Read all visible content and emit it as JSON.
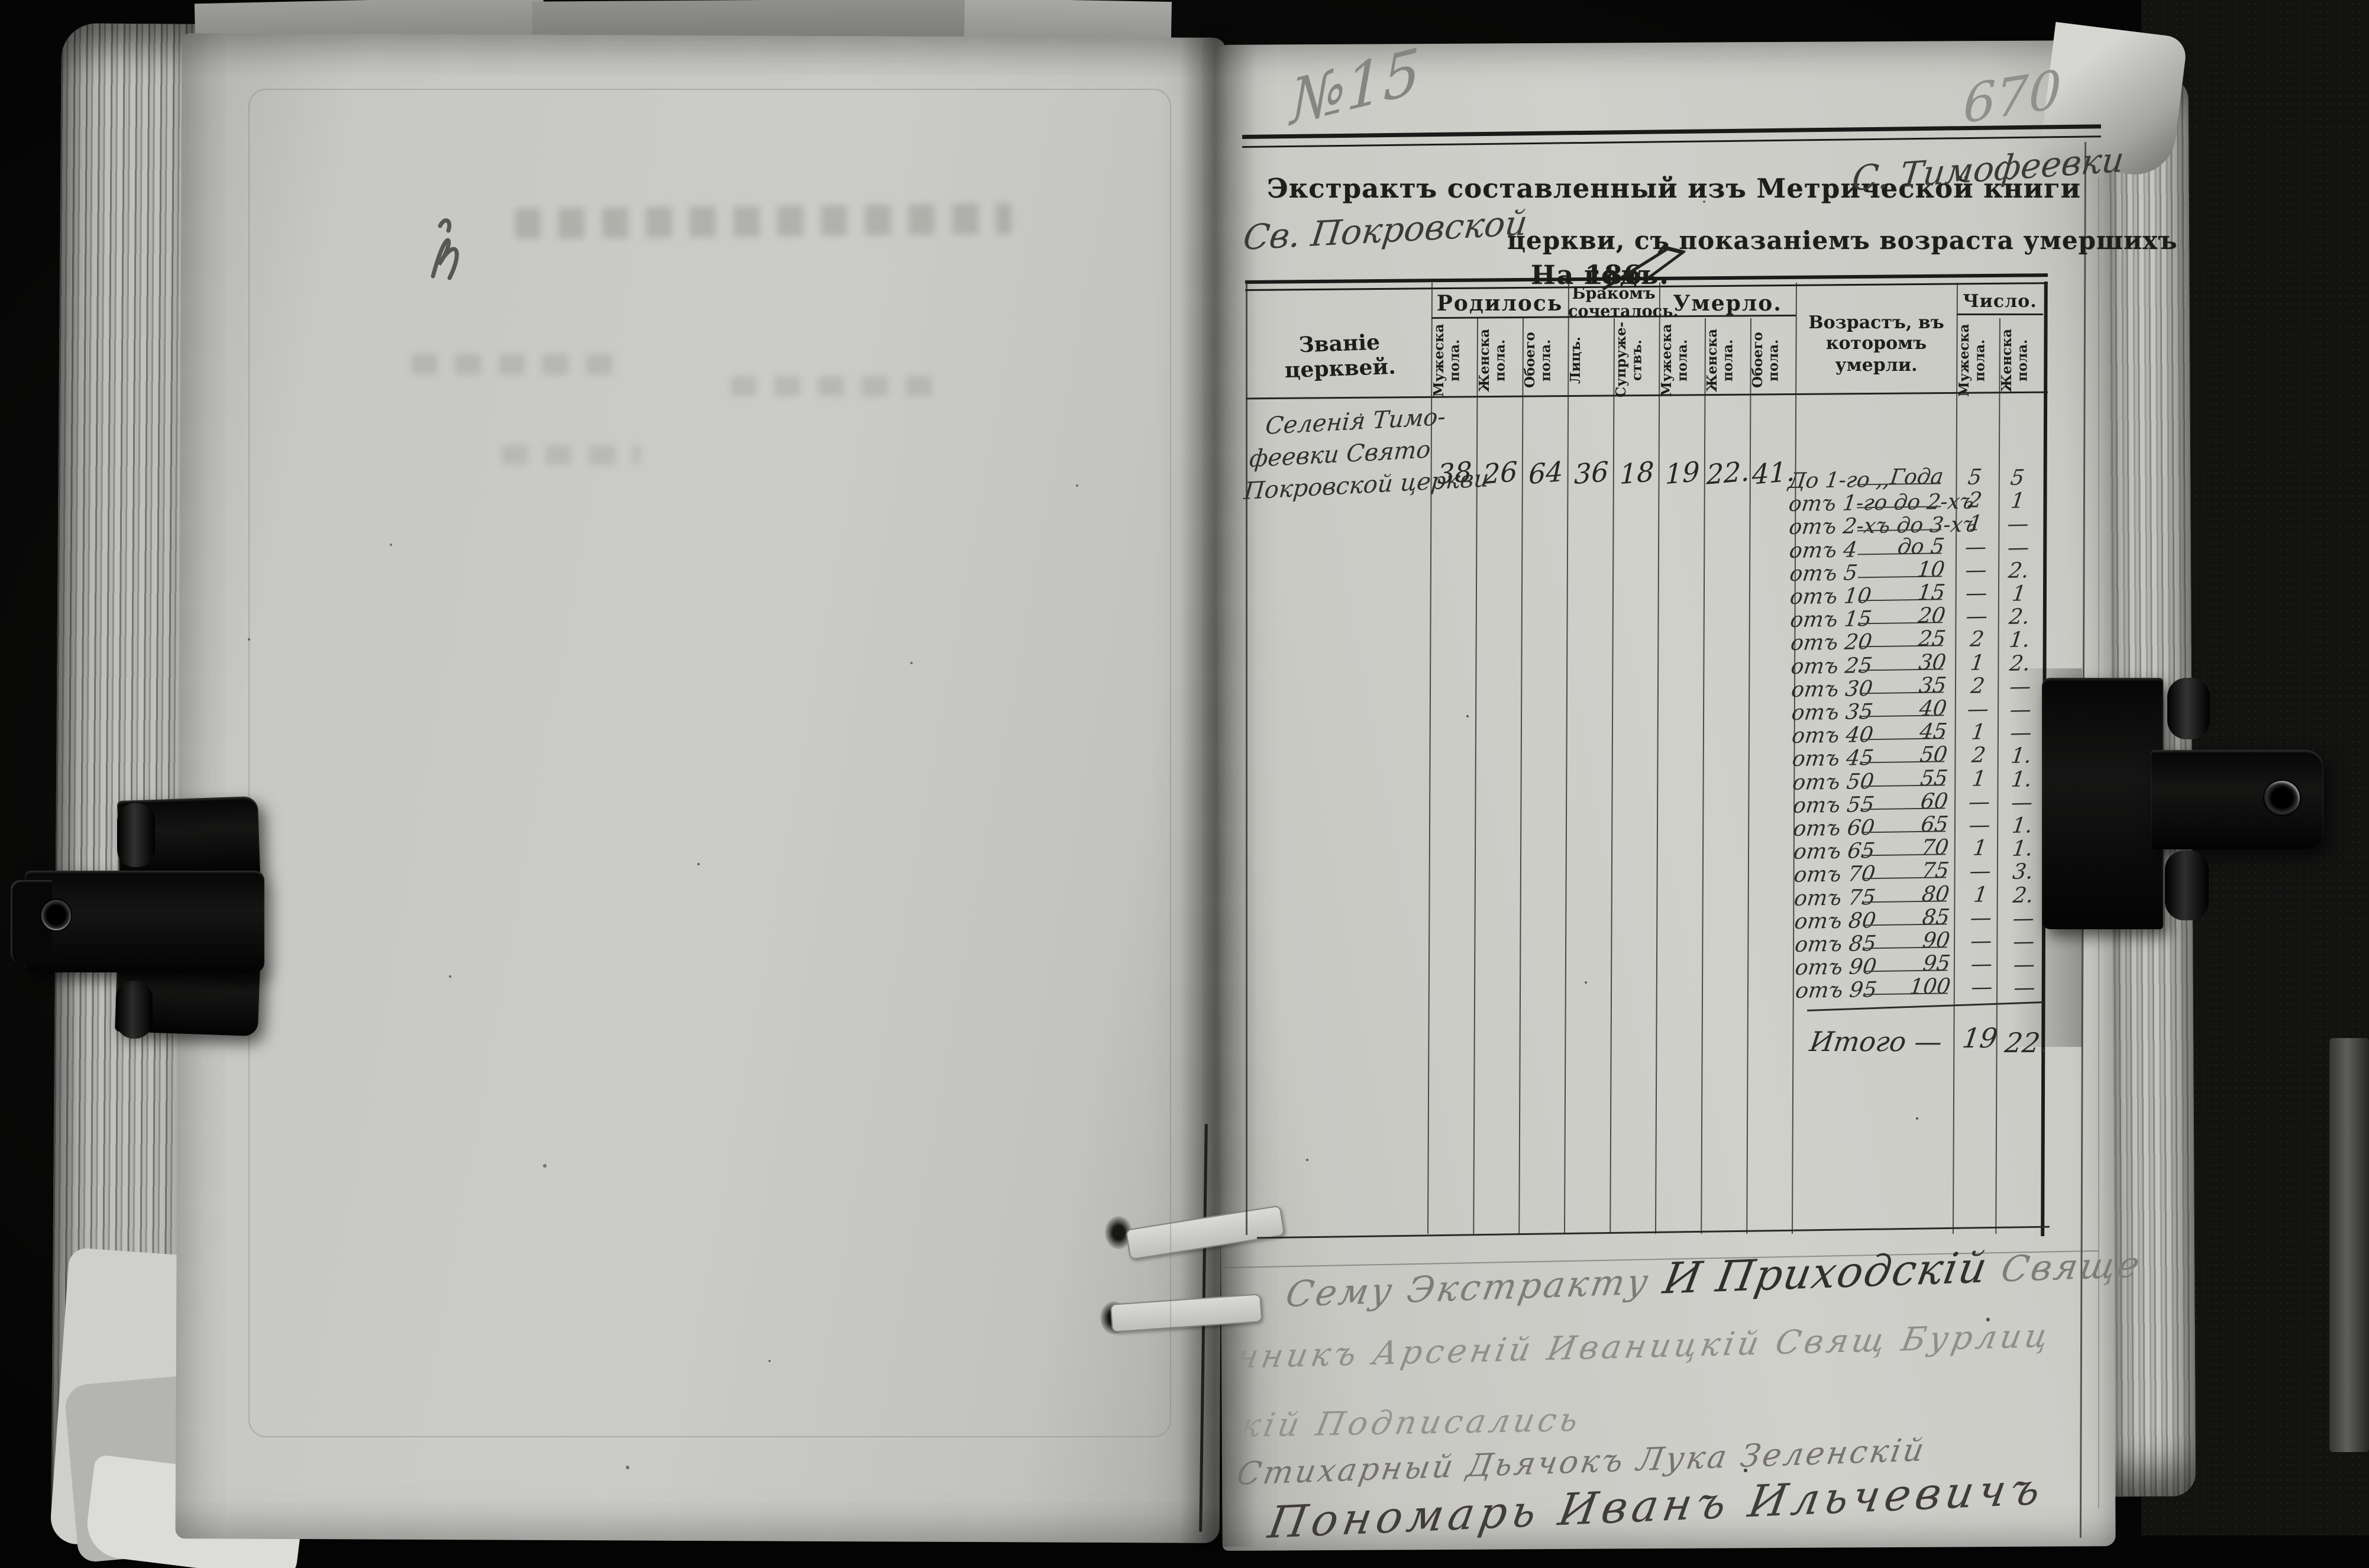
{
  "folio": {
    "sheet_note": "№15",
    "page_number": "670"
  },
  "title": {
    "printed_1": "Экстрактъ составленный изъ Метрической книги",
    "handwritten_place": "С. Тимофеевки",
    "handwritten_church": "Св. Покровской",
    "printed_2": "церкви, съ показаніемъ возраста умершихъ",
    "printed_year_prefix": "На 186",
    "handwritten_year": "7",
    "printed_year_suffix": "годъ."
  },
  "table": {
    "col_church": "Званіе церквей.",
    "group_born": {
      "label": "Родилось",
      "cols": [
        "Мужеска пола.",
        "Женска пола.",
        "Обоего пола."
      ]
    },
    "group_married": {
      "label": "Бракомъ сочеталось.",
      "cols": [
        "Лицъ.",
        "Супруже- ствъ."
      ]
    },
    "group_died": {
      "label": "Умерло.",
      "cols": [
        "Мужеска пола.",
        "Женска пола.",
        "Обоего пола."
      ]
    },
    "col_age_line1": "Возрастъ, въ которомъ",
    "col_age_line2": "умерли.",
    "group_count": {
      "label": "Число.",
      "cols": [
        "Мужеска пола.",
        "Женска пола."
      ]
    },
    "church_row": {
      "lines": [
        "Селенія Тимо-",
        "феевки Свято",
        "Покровской церкви"
      ],
      "values": [
        "38",
        "26",
        "64",
        "36",
        "18",
        "19",
        "22.",
        "41."
      ]
    },
    "age_rows": [
      {
        "prefix": "До 1-го ,,",
        "end": "Года",
        "m": "5",
        "f": "5"
      },
      {
        "prefix": "отъ 1-го до 2-хъ",
        "end": "",
        "m": "2",
        "f": "1"
      },
      {
        "prefix": "отъ 2-хъ до 3-хъ",
        "end": "",
        "m": "1",
        "f": "—"
      },
      {
        "prefix": "отъ 4",
        "end": "до 5",
        "m": "—",
        "f": "—"
      },
      {
        "prefix": "отъ 5",
        "end": "10",
        "m": "—",
        "f": "2."
      },
      {
        "prefix": "отъ 10",
        "end": "15",
        "m": "—",
        "f": "1"
      },
      {
        "prefix": "отъ 15",
        "end": "20",
        "m": "—",
        "f": "2."
      },
      {
        "prefix": "отъ 20",
        "end": "25",
        "m": "2",
        "f": "1."
      },
      {
        "prefix": "отъ 25",
        "end": "30",
        "m": "1",
        "f": "2."
      },
      {
        "prefix": "отъ 30",
        "end": "35",
        "m": "2",
        "f": "—"
      },
      {
        "prefix": "отъ 35",
        "end": "40",
        "m": "—",
        "f": "—"
      },
      {
        "prefix": "отъ 40",
        "end": "45",
        "m": "1",
        "f": "—"
      },
      {
        "prefix": "отъ 45",
        "end": "50",
        "m": "2",
        "f": "1."
      },
      {
        "prefix": "отъ 50",
        "end": "55",
        "m": "1",
        "f": "1."
      },
      {
        "prefix": "отъ 55",
        "end": "60",
        "m": "—",
        "f": "—"
      },
      {
        "prefix": "отъ 60",
        "end": "65",
        "m": "—",
        "f": "1."
      },
      {
        "prefix": "отъ 65",
        "end": "70",
        "m": "1",
        "f": "1."
      },
      {
        "prefix": "отъ 70",
        "end": "75",
        "m": "—",
        "f": "3."
      },
      {
        "prefix": "отъ 75",
        "end": "80",
        "m": "1",
        "f": "2."
      },
      {
        "prefix": "отъ 80",
        "end": "85",
        "m": "—",
        "f": "—"
      },
      {
        "prefix": "отъ 85",
        "end": "90",
        "m": "—",
        "f": "—"
      },
      {
        "prefix": "отъ 90",
        "end": "95",
        "m": "—",
        "f": "—"
      },
      {
        "prefix": "отъ 95",
        "end": "100",
        "m": "—",
        "f": "—"
      }
    ],
    "total": {
      "label": "Итого —",
      "m": "19",
      "f": "22."
    }
  },
  "signatures": {
    "line1a": "Сему Экстракту ",
    "line1b": "И Приходскій ",
    "line1c": "Свяще",
    "line2": "нникъ Арсеній Иваницкій Свящ Бурлиц",
    "line3": "кій Подписались",
    "line4": "Стихарный Дьячокъ Лука Зеленскій",
    "line5": "Пономарь Иванъ Ильчевичъ"
  }
}
